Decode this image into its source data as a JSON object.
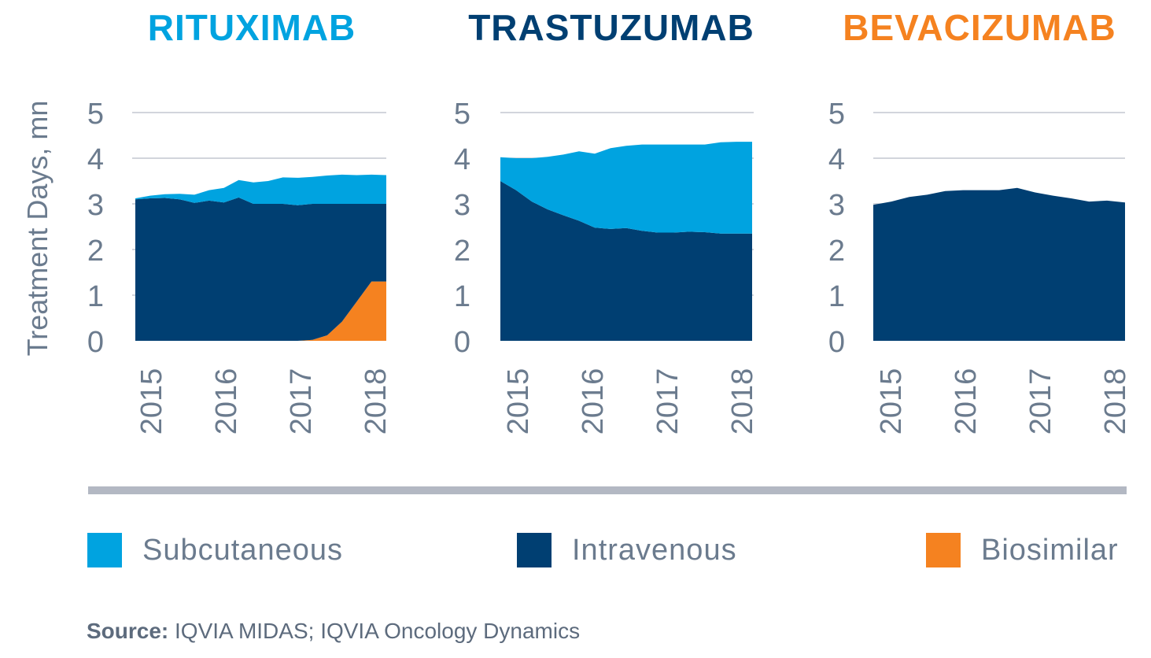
{
  "colors": {
    "subcutaneous": "#00a3e0",
    "intravenous": "#003f72",
    "biosimilar": "#f58220",
    "grid": "#b7bcc6",
    "tick": "#6b7b8e"
  },
  "y_axis_title": "Treatment Days, mn",
  "legend": [
    {
      "label": "Subcutaneous",
      "color": "#00a3e0"
    },
    {
      "label": "Intravenous",
      "color": "#003f72"
    },
    {
      "label": "Biosimilar",
      "color": "#f58220"
    }
  ],
  "source": {
    "label": "Source:",
    "text": " IQVIA MIDAS; IQVIA Oncology Dynamics"
  },
  "chart_data": [
    {
      "type": "area",
      "title": "RITUXIMAB",
      "title_color": "#00a3e0",
      "ylabel": "Treatment Days, mn",
      "ylim": [
        0,
        5
      ],
      "yticks": [
        "0",
        "1",
        "2",
        "3",
        "4",
        "5"
      ],
      "x_tick_labels": [
        "2015",
        "2016",
        "2017",
        "2018"
      ],
      "x": [
        0,
        0.25,
        0.5,
        0.75,
        1,
        1.25,
        1.5,
        1.75,
        2,
        2.25,
        2.5,
        2.75,
        3,
        3.25,
        3.5,
        3.75,
        4,
        4.25
      ],
      "series": [
        {
          "name": "Biosimilar",
          "values": [
            0,
            0,
            0,
            0,
            0,
            0,
            0,
            0,
            0,
            0,
            0,
            0,
            0.02,
            0.12,
            0.42,
            0.86,
            1.3,
            1.3
          ]
        },
        {
          "name": "Intravenous",
          "values": [
            3.1,
            3.12,
            3.13,
            3.1,
            3.02,
            3.07,
            3.03,
            3.14,
            3.0,
            3.0,
            3.0,
            2.97,
            2.98,
            2.88,
            2.58,
            2.14,
            1.7,
            1.7
          ]
        },
        {
          "name": "Subcutaneous",
          "values": [
            0.02,
            0.06,
            0.08,
            0.12,
            0.18,
            0.23,
            0.32,
            0.38,
            0.47,
            0.5,
            0.58,
            0.6,
            0.59,
            0.62,
            0.64,
            0.63,
            0.64,
            0.63
          ]
        }
      ]
    },
    {
      "type": "area",
      "title": "TRASTUZUMAB",
      "title_color": "#003f72",
      "ylabel": "Treatment Days, mn",
      "ylim": [
        0,
        5
      ],
      "yticks": [
        "0",
        "1",
        "2",
        "3",
        "4",
        "5"
      ],
      "x_tick_labels": [
        "2015",
        "2016",
        "2017",
        "2018"
      ],
      "x": [
        0,
        0.25,
        0.5,
        0.75,
        1,
        1.25,
        1.5,
        1.75,
        2,
        2.25,
        2.5,
        2.75,
        3,
        3.25,
        3.5,
        3.75,
        4
      ],
      "series": [
        {
          "name": "Intravenous",
          "values": [
            3.5,
            3.3,
            3.05,
            2.88,
            2.75,
            2.63,
            2.48,
            2.45,
            2.47,
            2.41,
            2.37,
            2.37,
            2.39,
            2.38,
            2.35,
            2.35,
            2.35
          ]
        },
        {
          "name": "Subcutaneous",
          "values": [
            0.52,
            0.7,
            0.95,
            1.15,
            1.33,
            1.52,
            1.62,
            1.77,
            1.8,
            1.89,
            1.93,
            1.93,
            1.91,
            1.92,
            2.0,
            2.01,
            2.01
          ]
        }
      ]
    },
    {
      "type": "area",
      "title": "BEVACIZUMAB",
      "title_color": "#f58220",
      "ylabel": "Treatment Days, mn",
      "ylim": [
        0,
        5
      ],
      "yticks": [
        "0",
        "1",
        "2",
        "3",
        "4",
        "5"
      ],
      "x_tick_labels": [
        "2015",
        "2016",
        "2017",
        "2018"
      ],
      "x": [
        0,
        0.25,
        0.5,
        0.75,
        1,
        1.25,
        1.5,
        1.75,
        2,
        2.25,
        2.5,
        2.75,
        3,
        3.25,
        3.5
      ],
      "series": [
        {
          "name": "Intravenous",
          "values": [
            2.98,
            3.05,
            3.15,
            3.2,
            3.28,
            3.3,
            3.3,
            3.3,
            3.35,
            3.25,
            3.18,
            3.12,
            3.05,
            3.07,
            3.03
          ]
        }
      ]
    }
  ]
}
